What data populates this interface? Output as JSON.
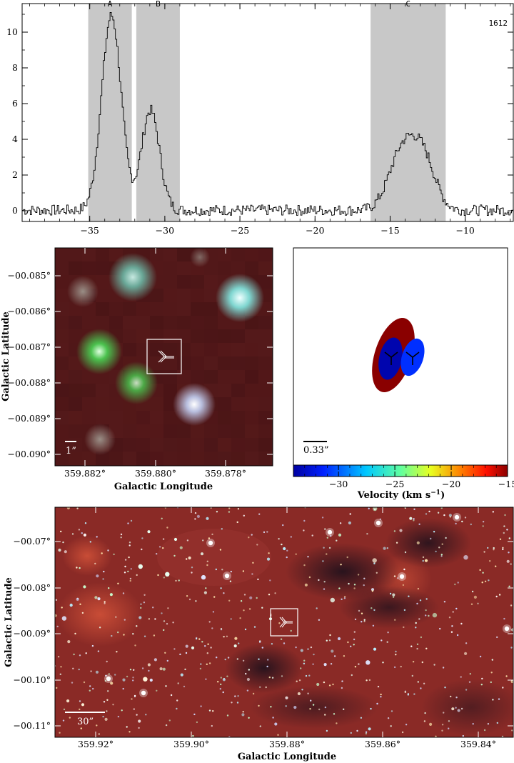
{
  "chart_data": [
    {
      "type": "line",
      "panel": "spectrum",
      "id_label": "1612",
      "xlim": [
        -39.5,
        -6.8
      ],
      "ylim": [
        -0.6,
        11.6
      ],
      "x_ticks": [
        -35,
        -30,
        -25,
        -20,
        -15,
        -10
      ],
      "y_ticks": [
        0,
        2,
        4,
        6,
        8,
        10
      ],
      "x_tick_labels": [
        "−35",
        "−30",
        "−25",
        "−20",
        "−15",
        "−10"
      ],
      "y_tick_labels": [
        "0",
        "2",
        "4",
        "6",
        "8",
        "10"
      ],
      "regions": [
        {
          "label": "A",
          "x0": -35.1,
          "x1": -32.2
        },
        {
          "label": "B",
          "x0": -31.9,
          "x1": -29.0
        },
        {
          "label": "C",
          "x0": -16.3,
          "x1": -11.3
        }
      ],
      "peaks": [
        {
          "center": -33.6,
          "amp": 10.9,
          "sigma": 0.65
        },
        {
          "center": -31.0,
          "amp": 5.6,
          "sigma": 0.6
        },
        {
          "center": -14.2,
          "amp": 3.3,
          "sigma": 0.9
        },
        {
          "center": -12.8,
          "amp": 2.6,
          "sigma": 0.8
        }
      ]
    },
    {
      "type": "image",
      "panel": "zoom",
      "xlabel": "Galactic Longitude",
      "ylabel": "Galactic Latitude",
      "x_tick_labels": [
        "359.882°",
        "359.880°",
        "359.878°"
      ],
      "y_tick_labels": [
        "−00.085°",
        "−00.086°",
        "−00.087°",
        "−00.088°",
        "−00.089°",
        "−00.090°"
      ],
      "scale_bar": "1”"
    },
    {
      "type": "scatter",
      "panel": "velocity-map",
      "scale_bar": "0.33”",
      "colorbar_label": "Velocity (km s",
      "colorbar_unit_exp": "−1",
      "colorbar_unit_close": ")",
      "colorbar_range": [
        -34,
        -15
      ],
      "colorbar_ticks": [
        -30,
        -25,
        -20,
        -15
      ],
      "colorbar_tick_labels": [
        "−30",
        "−25",
        "−20",
        "−15"
      ],
      "ellipses": [
        {
          "component": "C",
          "velocity": -14.2
        },
        {
          "component": "A",
          "velocity": -33.6
        },
        {
          "component": "B",
          "velocity": -31.0
        }
      ]
    },
    {
      "type": "image",
      "panel": "wide-field",
      "xlabel": "Galactic Longitude",
      "ylabel": "Galactic Latitude",
      "x_tick_labels": [
        "359.92°",
        "359.90°",
        "359.88°",
        "359.86°",
        "359.84°"
      ],
      "y_tick_labels": [
        "−00.07°",
        "−00.08°",
        "−00.09°",
        "−00.10°",
        "−00.11°"
      ],
      "scale_bar": "30”"
    }
  ]
}
